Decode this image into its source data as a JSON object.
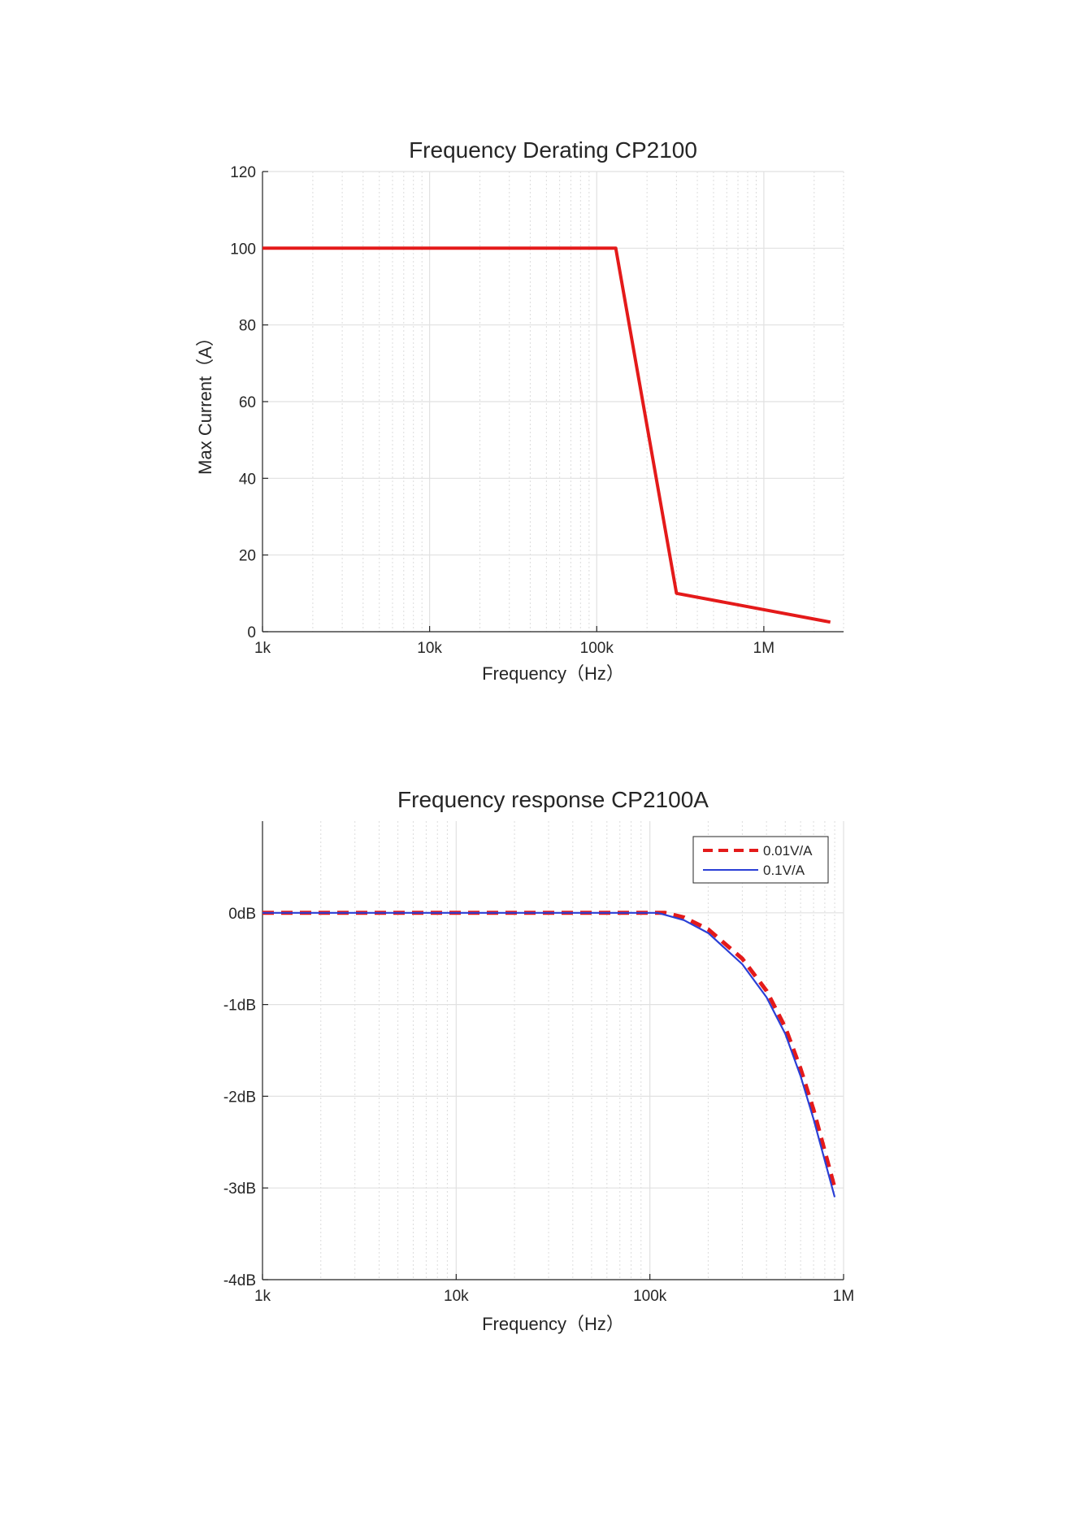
{
  "chart_data": [
    {
      "type": "line",
      "title": "Frequency Derating CP2100",
      "xlabel": "Frequency（Hz）",
      "ylabel": "Max Current（A）",
      "xscale": "log",
      "xlim": [
        1000,
        3000000
      ],
      "ylim": [
        0,
        120
      ],
      "xticks": [
        1000,
        10000,
        100000,
        1000000
      ],
      "xtick_labels": [
        "1k",
        "10k",
        "100k",
        "1M"
      ],
      "yticks": [
        0,
        20,
        40,
        60,
        80,
        100,
        120
      ],
      "ytick_labels": [
        "0",
        "20",
        "40",
        "60",
        "80",
        "100",
        "120"
      ],
      "grid": true,
      "series": [
        {
          "color": "#e41a1a",
          "style": "solid",
          "x": [
            1000,
            130000,
            300000,
            2500000
          ],
          "y": [
            100,
            100,
            10,
            2.5
          ]
        }
      ]
    },
    {
      "type": "line",
      "title": "Frequency response CP2100A",
      "xlabel": "Frequency（Hz）",
      "ylabel": "",
      "xscale": "log",
      "xlim": [
        1000,
        1000000
      ],
      "ylim": [
        -4,
        1
      ],
      "xticks": [
        1000,
        10000,
        100000,
        1000000
      ],
      "xtick_labels": [
        "1k",
        "10k",
        "100k",
        "1M"
      ],
      "yticks": [
        -4,
        -3,
        -2,
        -1,
        0
      ],
      "ytick_labels": [
        "-4dB",
        "-3dB",
        "-2dB",
        "-1dB",
        "0dB"
      ],
      "grid": true,
      "legend": "top-right",
      "series": [
        {
          "name": "0.01V/A",
          "color": "#e41a1a",
          "style": "dashed",
          "x": [
            1000,
            10000,
            100000,
            120000,
            150000,
            200000,
            300000,
            400000,
            500000,
            600000,
            700000,
            800000,
            900000
          ],
          "y": [
            0,
            0,
            0,
            0,
            -0.05,
            -0.18,
            -0.5,
            -0.85,
            -1.25,
            -1.7,
            -2.15,
            -2.6,
            -3.0
          ]
        },
        {
          "name": "0.1V/A",
          "color": "#2a3fd6",
          "style": "solid",
          "x": [
            1000,
            10000,
            100000,
            110000,
            150000,
            200000,
            300000,
            400000,
            500000,
            600000,
            700000,
            800000,
            900000
          ],
          "y": [
            0,
            0,
            0,
            0,
            -0.08,
            -0.22,
            -0.56,
            -0.92,
            -1.32,
            -1.78,
            -2.25,
            -2.7,
            -3.1
          ]
        }
      ]
    }
  ]
}
